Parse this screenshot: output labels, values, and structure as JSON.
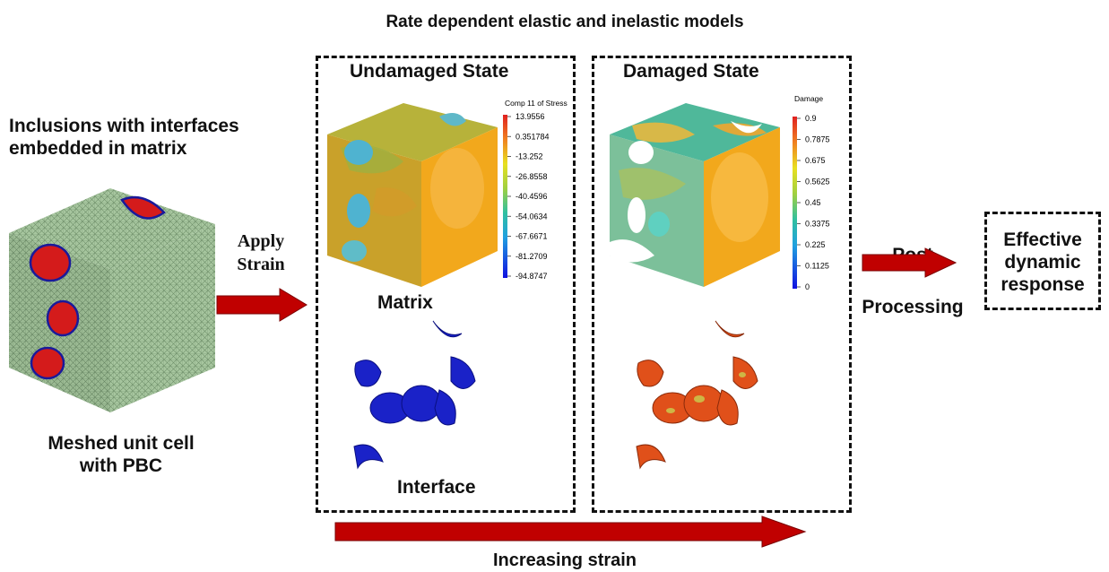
{
  "title": "Rate dependent elastic and inelastic models",
  "left": {
    "heading_line1": "Inclusions with interfaces",
    "heading_line2": "embedded in matrix",
    "caption_line1": "Meshed unit cell",
    "caption_line2": "with PBC"
  },
  "apply_strain": {
    "line1": "Apply",
    "line2": "Strain"
  },
  "undamaged": {
    "title": "Undamaged State",
    "matrix_label": "Matrix",
    "interface_label": "Interface",
    "colorbar_title": "Comp 11 of Stress",
    "colorbar_ticks": [
      "13.9556",
      "0.351784",
      "-13.252",
      "-26.8558",
      "-40.4596",
      "-54.0634",
      "-67.6671",
      "-81.2709",
      "-94.8747"
    ]
  },
  "damaged": {
    "title": "Damaged State",
    "colorbar_title": "Damage",
    "colorbar_ticks": [
      "0.9",
      "0.7875",
      "0.675",
      "0.5625",
      "0.45",
      "0.3375",
      "0.225",
      "0.1125",
      "0"
    ]
  },
  "post": {
    "line1": "Post",
    "line2": "Processing"
  },
  "effective": {
    "line1": "Effective",
    "line2": "dynamic",
    "line3": "response"
  },
  "increasing_strain": "Increasing strain",
  "colors": {
    "arrow_red": "#c00000",
    "mesh_green": "#a3c49b",
    "inclusion_red": "#d41b1b",
    "inclusion_blue": "#1a22c8",
    "matrix_orange": "#f2a81c",
    "matrix_olive": "#b8b43a",
    "damage_teal": "#3fb8a8"
  }
}
